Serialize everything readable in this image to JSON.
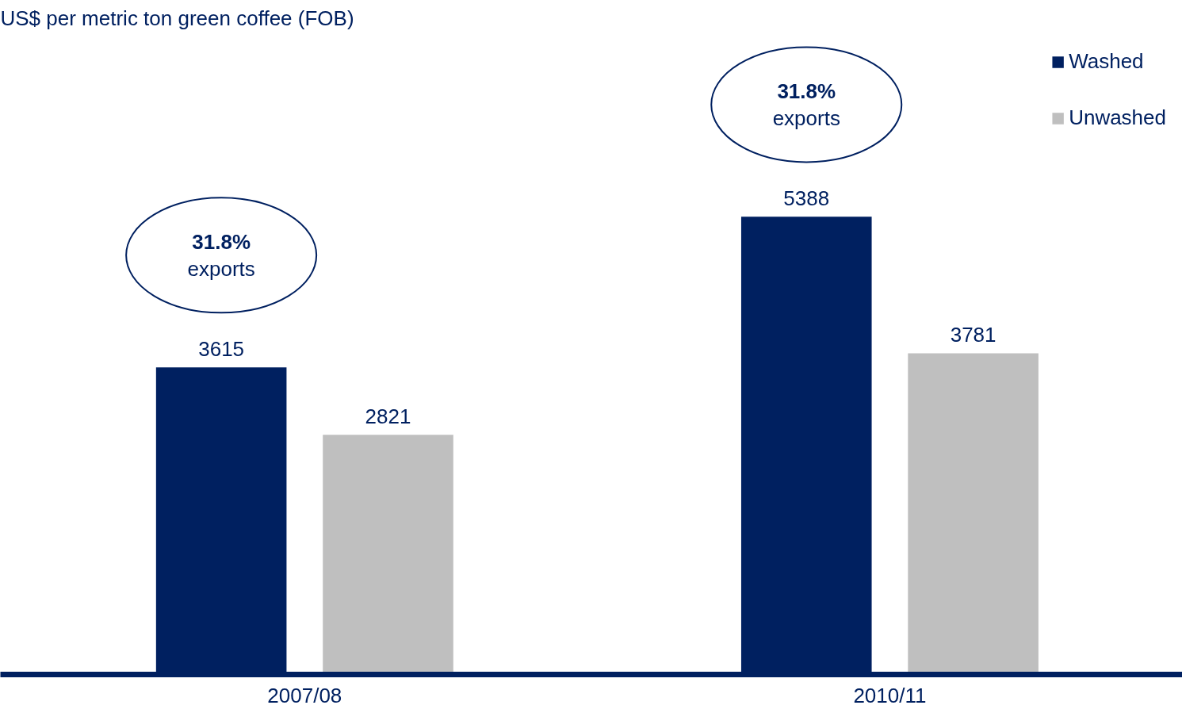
{
  "chart_data": {
    "type": "bar",
    "subtitle": "US$ per metric ton green coffee (FOB)",
    "categories": [
      "2007/08",
      "2010/11"
    ],
    "series": [
      {
        "name": "Washed",
        "color": "#002060",
        "values": [
          3615,
          5388
        ]
      },
      {
        "name": "Unwashed",
        "color": "#bfbfbf",
        "values": [
          2821,
          3781
        ]
      }
    ],
    "data_labels": true,
    "legend": "top right",
    "grid": false,
    "annotations": [
      "31.8% exports",
      "31.8% exports"
    ]
  }
}
